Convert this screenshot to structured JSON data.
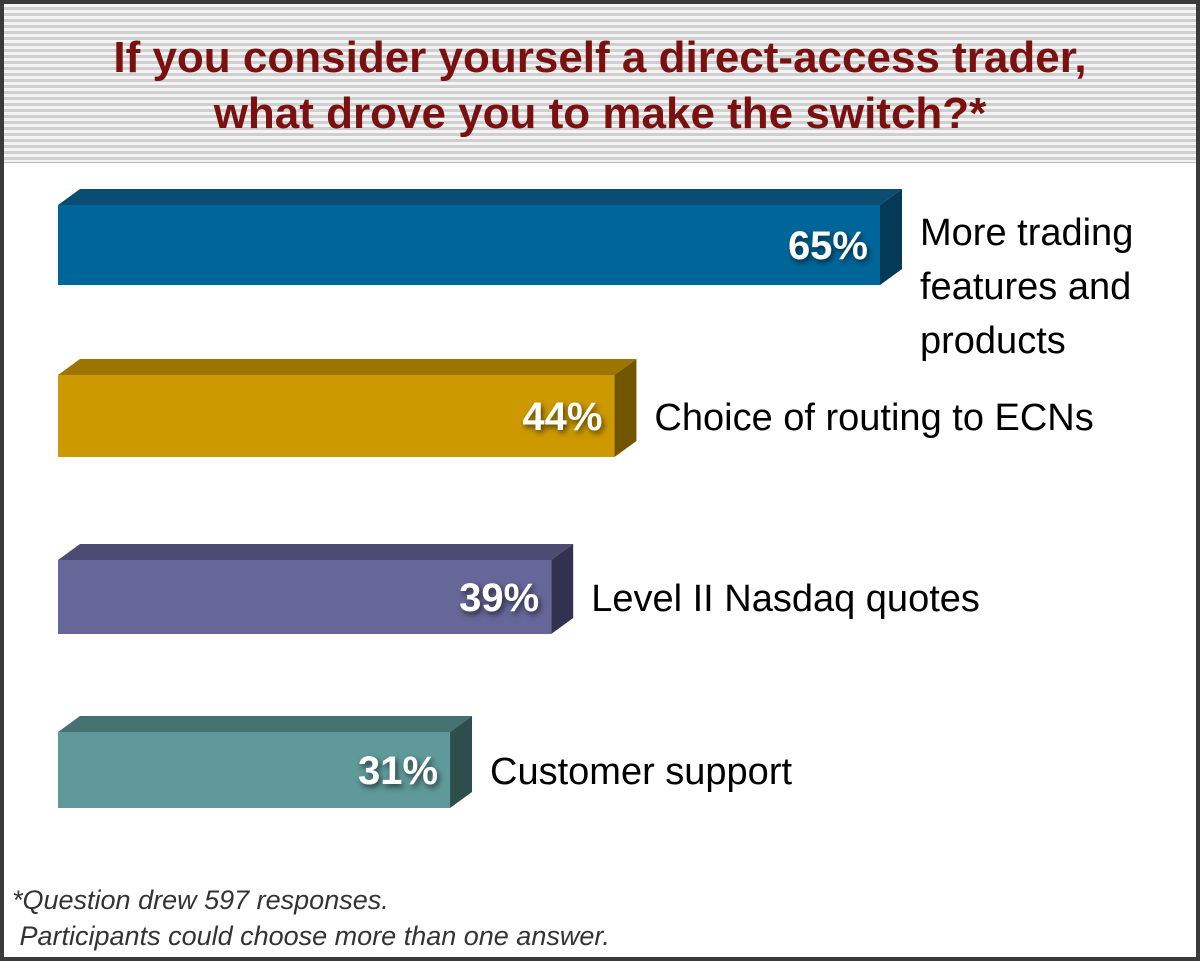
{
  "chart_data": {
    "type": "bar",
    "orientation": "horizontal",
    "title": "If you consider yourself a direct-access trader, what drove you to make the switch?*",
    "title_lines": [
      "If you consider yourself a direct-access trader,",
      "what drove you to make the switch?*"
    ],
    "categories": [
      "More trading features and products",
      "Choice of routing to ECNs",
      "Level II Nasdaq quotes",
      "Customer support"
    ],
    "category_lines": [
      [
        "More trading",
        "features and",
        "products"
      ],
      [
        "Choice of routing to ECNs"
      ],
      [
        "Level II Nasdaq quotes"
      ],
      [
        "Customer support"
      ]
    ],
    "values": [
      65,
      44,
      39,
      31
    ],
    "value_labels": [
      "65%",
      "44%",
      "39%",
      "31%"
    ],
    "unit": "%",
    "xlim": [
      0,
      65
    ],
    "grid": false,
    "colors": [
      {
        "front": "#006699",
        "top": "#0b4d72",
        "side": "#053a57"
      },
      {
        "front": "#cc9900",
        "top": "#9c7400",
        "side": "#735500"
      },
      {
        "front": "#666699",
        "top": "#4b4b74",
        "side": "#323250"
      },
      {
        "front": "#5f9999",
        "top": "#477272",
        "side": "#2e4d4d"
      }
    ],
    "footnote_lines": [
      "*Question drew 597 responses.",
      " Participants could choose more than one answer."
    ]
  }
}
